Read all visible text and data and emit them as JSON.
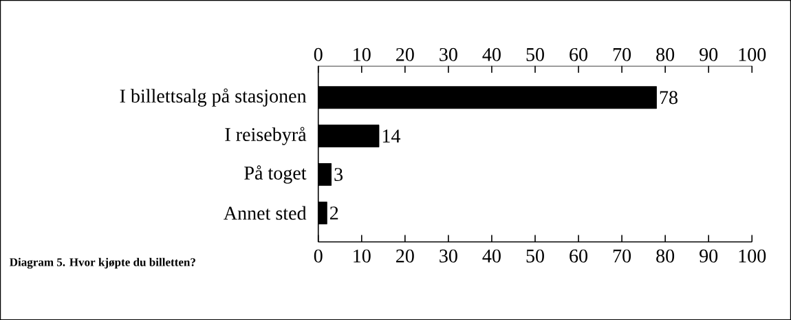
{
  "chart_data": {
    "type": "bar",
    "orientation": "horizontal",
    "categories": [
      "I billettsalg på stasjonen",
      "I reisebyrå",
      "På toget",
      "Annet sted"
    ],
    "values": [
      78,
      14,
      3,
      2
    ],
    "color": "#000000",
    "data_labels": true,
    "xlim": [
      0,
      100
    ],
    "xticks": [
      0,
      10,
      20,
      30,
      40,
      50,
      60,
      70,
      80,
      90,
      100
    ],
    "x2lim": [
      0,
      100
    ],
    "x2ticks": [
      0,
      10,
      20,
      30,
      40,
      50,
      60,
      70,
      80,
      90,
      100
    ],
    "grid": false,
    "annotations": [
      "Diagram 5. Hvor kjøpte du billetten?"
    ]
  }
}
